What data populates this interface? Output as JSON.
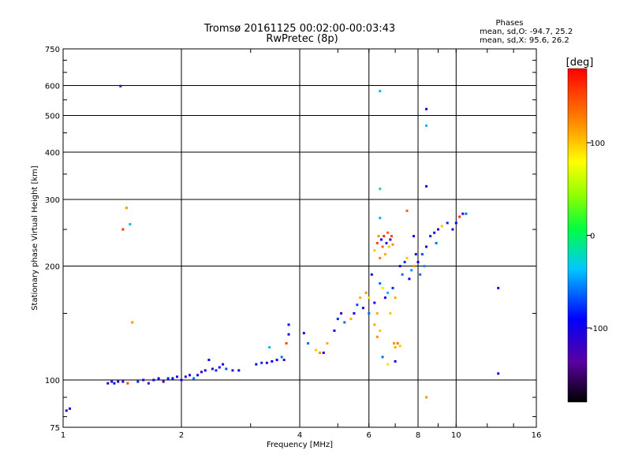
{
  "chart_data": {
    "type": "scatter",
    "title": "Tromsø 20161125 00:02:00-00:03:43",
    "subtitle": "RwPretec (8p)",
    "xlabel": "Frequency [MHz]",
    "ylabel": "Stationary phase Virtual Height [km]",
    "x_scale": "log",
    "y_scale": "log",
    "xlim": [
      1,
      16
    ],
    "ylim": [
      75,
      750
    ],
    "x_ticks": [
      1,
      2,
      4,
      6,
      8,
      10,
      16
    ],
    "x_tick_labels": [
      "1",
      "2",
      "4",
      "6",
      "8",
      "10",
      "16"
    ],
    "y_ticks": [
      75,
      100,
      200,
      300,
      400,
      500,
      600,
      750
    ],
    "y_tick_labels": [
      "75",
      "100",
      "200",
      "300",
      "400",
      "500",
      "600",
      "750"
    ],
    "x_grid": [
      2,
      4,
      6,
      8,
      10
    ],
    "y_grid": [
      100,
      200,
      300,
      400,
      500,
      600
    ],
    "grid": true,
    "stats": {
      "heading": "Phases",
      "line_o": "mean, sd,O: -94.7, 25.2",
      "line_x": "mean, sd,X:  95.6, 26.2"
    },
    "colorbar": {
      "label": "[deg]",
      "range": [
        -180,
        180
      ],
      "ticks": [
        100,
        0,
        -100
      ],
      "tick_labels": [
        "100",
        "0",
        "-100"
      ]
    },
    "series": [
      {
        "points": [
          [
            1.02,
            83,
            -110
          ],
          [
            1.04,
            84,
            -100
          ],
          [
            1.3,
            98,
            -100
          ],
          [
            1.33,
            99,
            -110
          ],
          [
            1.35,
            98,
            -90
          ],
          [
            1.38,
            99,
            -120
          ],
          [
            1.42,
            99,
            -100
          ],
          [
            1.46,
            98,
            150
          ],
          [
            1.55,
            99,
            -80
          ],
          [
            1.6,
            100,
            -110
          ],
          [
            1.65,
            98,
            -130
          ],
          [
            1.7,
            100,
            -90
          ],
          [
            1.75,
            101,
            -100
          ],
          [
            1.8,
            99,
            -120
          ],
          [
            1.85,
            101,
            -80
          ],
          [
            1.9,
            101,
            -100
          ],
          [
            1.95,
            102,
            -110
          ],
          [
            2.0,
            100,
            -95
          ],
          [
            2.05,
            102,
            -120
          ],
          [
            2.1,
            103,
            -100
          ],
          [
            2.15,
            101,
            -60
          ],
          [
            2.2,
            103,
            -90
          ],
          [
            2.25,
            105,
            -110
          ],
          [
            2.3,
            106,
            -100
          ],
          [
            2.4,
            107,
            -120
          ],
          [
            2.45,
            106,
            -80
          ],
          [
            2.5,
            108,
            -100
          ],
          [
            2.6,
            107,
            -70
          ],
          [
            2.7,
            106,
            -110
          ],
          [
            2.8,
            106,
            -90
          ],
          [
            2.35,
            113,
            -100
          ],
          [
            2.55,
            110,
            -95
          ],
          [
            3.1,
            110,
            -100
          ],
          [
            3.2,
            111,
            -80
          ],
          [
            3.3,
            111,
            -110
          ],
          [
            3.4,
            112,
            -90
          ],
          [
            3.5,
            113,
            -100
          ],
          [
            3.6,
            115,
            -60
          ],
          [
            3.65,
            113,
            -120
          ],
          [
            3.35,
            122,
            -40
          ],
          [
            3.7,
            125,
            150
          ],
          [
            3.75,
            140,
            -100
          ],
          [
            3.75,
            132,
            -110
          ],
          [
            4.1,
            133,
            -110
          ],
          [
            4.2,
            125,
            -60
          ],
          [
            4.4,
            120,
            100
          ],
          [
            4.5,
            118,
            120
          ],
          [
            4.6,
            118,
            -100
          ],
          [
            4.7,
            125,
            110
          ],
          [
            4.9,
            135,
            -100
          ],
          [
            5.0,
            145,
            -80
          ],
          [
            5.1,
            150,
            -120
          ],
          [
            5.2,
            142,
            -60
          ],
          [
            5.4,
            145,
            110
          ],
          [
            5.5,
            150,
            -90
          ],
          [
            5.6,
            158,
            -70
          ],
          [
            5.7,
            165,
            110
          ],
          [
            5.8,
            155,
            -100
          ],
          [
            5.9,
            170,
            120
          ],
          [
            6.0,
            150,
            -60
          ],
          [
            6.0,
            165,
            90
          ],
          [
            6.1,
            190,
            -100
          ],
          [
            6.2,
            220,
            100
          ],
          [
            6.3,
            230,
            150
          ],
          [
            6.35,
            240,
            120
          ],
          [
            6.4,
            210,
            130
          ],
          [
            6.45,
            235,
            -100
          ],
          [
            6.5,
            225,
            140
          ],
          [
            6.55,
            240,
            160
          ],
          [
            6.6,
            215,
            110
          ],
          [
            6.65,
            230,
            -110
          ],
          [
            6.7,
            245,
            140
          ],
          [
            6.75,
            225,
            100
          ],
          [
            6.8,
            235,
            -120
          ],
          [
            6.85,
            240,
            150
          ],
          [
            6.9,
            228,
            120
          ],
          [
            6.2,
            160,
            -100
          ],
          [
            6.3,
            150,
            110
          ],
          [
            6.4,
            180,
            -60
          ],
          [
            6.5,
            175,
            90
          ],
          [
            6.6,
            165,
            -100
          ],
          [
            6.7,
            170,
            -40
          ],
          [
            6.8,
            150,
            100
          ],
          [
            6.9,
            175,
            -80
          ],
          [
            7.0,
            165,
            110
          ],
          [
            6.3,
            130,
            120
          ],
          [
            6.4,
            135,
            100
          ],
          [
            6.2,
            140,
            110
          ],
          [
            6.95,
            125,
            120
          ],
          [
            7.0,
            122,
            110
          ],
          [
            7.1,
            125,
            130
          ],
          [
            7.2,
            123,
            100
          ],
          [
            6.5,
            115,
            -60
          ],
          [
            6.7,
            110,
            90
          ],
          [
            7.0,
            112,
            -100
          ],
          [
            6.4,
            268,
            -40
          ],
          [
            6.4,
            320,
            -20
          ],
          [
            6.4,
            580,
            -40
          ],
          [
            7.2,
            200,
            -100
          ],
          [
            7.3,
            190,
            -60
          ],
          [
            7.4,
            205,
            -80
          ],
          [
            7.5,
            210,
            100
          ],
          [
            7.6,
            185,
            -100
          ],
          [
            7.7,
            195,
            -50
          ],
          [
            7.8,
            200,
            120
          ],
          [
            7.9,
            215,
            -110
          ],
          [
            8.0,
            205,
            -90
          ],
          [
            8.1,
            190,
            -60
          ],
          [
            7.5,
            280,
            140
          ],
          [
            7.8,
            240,
            -100
          ],
          [
            8.2,
            215,
            -70
          ],
          [
            8.4,
            225,
            -100
          ],
          [
            8.6,
            240,
            -80
          ],
          [
            8.8,
            245,
            -100
          ],
          [
            8.9,
            230,
            -60
          ],
          [
            9.0,
            250,
            -110
          ],
          [
            9.2,
            255,
            100
          ],
          [
            9.5,
            260,
            -80
          ],
          [
            9.8,
            250,
            -100
          ],
          [
            10.0,
            260,
            -90
          ],
          [
            10.2,
            270,
            160
          ],
          [
            10.4,
            275,
            -110
          ],
          [
            10.6,
            275,
            -60
          ],
          [
            8.4,
            520,
            -100
          ],
          [
            8.4,
            470,
            -40
          ],
          [
            8.4,
            325,
            -100
          ],
          [
            8.4,
            90,
            120
          ],
          [
            8.3,
            200,
            -50
          ],
          [
            1.4,
            598,
            -120
          ],
          [
            1.42,
            250,
            160
          ],
          [
            1.45,
            285,
            120
          ],
          [
            1.48,
            258,
            -40
          ],
          [
            1.5,
            142,
            120
          ],
          [
            12.8,
            175,
            -110
          ],
          [
            12.8,
            104,
            -100
          ]
        ]
      }
    ]
  }
}
